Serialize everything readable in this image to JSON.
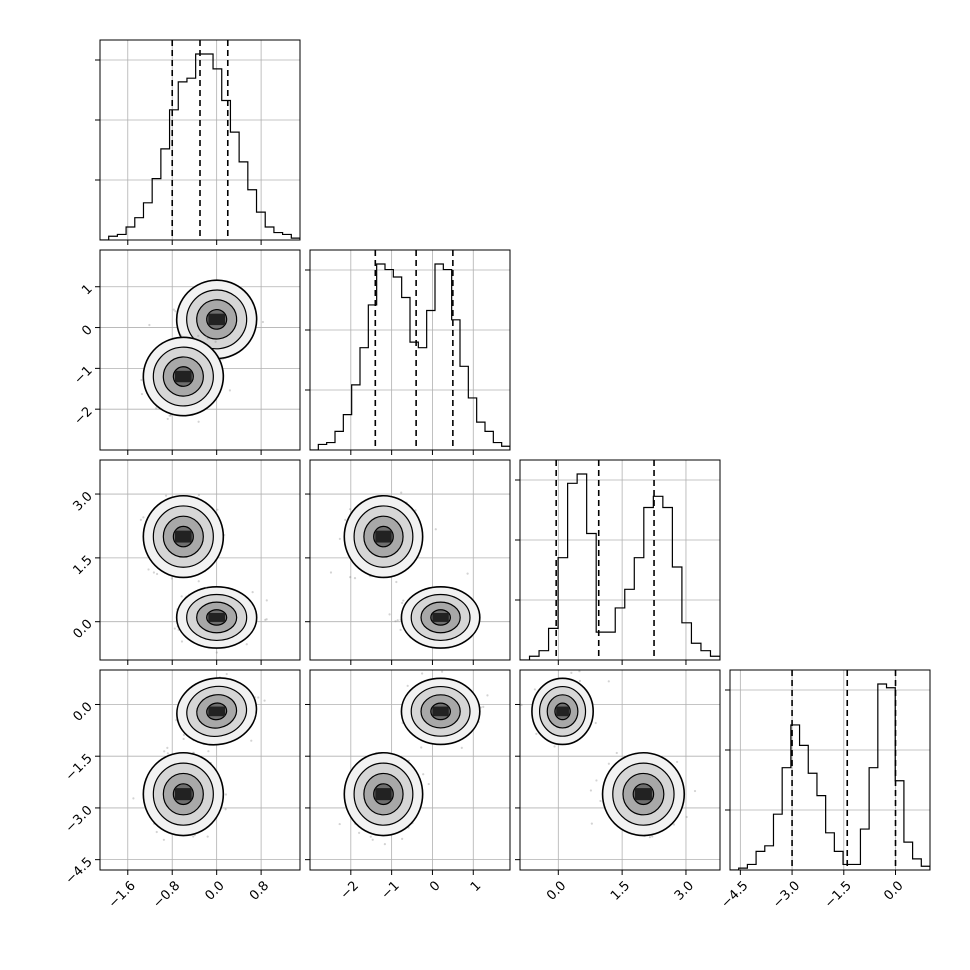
{
  "chart_data": {
    "type": "corner",
    "title": "",
    "n_params": 4,
    "axis_labels": [
      "",
      "",
      "",
      ""
    ],
    "grid": true,
    "colors": {
      "line": "#000000",
      "grid": "#b0b0b0",
      "points": "#808080",
      "background": "#ffffff"
    },
    "params": [
      {
        "range": [
          -2.1,
          1.5
        ],
        "ticks": [
          -1.6,
          -0.8,
          0.0,
          0.8
        ],
        "tick_labels": [
          "−1.6",
          "−0.8",
          "0.0",
          "0.8"
        ],
        "quantiles": [
          -0.8,
          -0.3,
          0.2
        ]
      },
      {
        "range": [
          -3.0,
          1.9
        ],
        "ticks": [
          -2,
          -1,
          0,
          1
        ],
        "tick_labels": [
          "−2",
          "−1",
          "0",
          "1"
        ],
        "quantiles": [
          -1.4,
          -0.4,
          0.5
        ]
      },
      {
        "range": [
          -0.9,
          3.8
        ],
        "ticks": [
          0.0,
          1.5,
          3.0
        ],
        "tick_labels": [
          "0.0",
          "1.5",
          "3.0"
        ],
        "quantiles": [
          -0.05,
          0.95,
          2.25
        ]
      },
      {
        "range": [
          -4.8,
          1.0
        ],
        "ticks": [
          -4.5,
          -3.0,
          -1.5,
          0.0
        ],
        "tick_labels": [
          "−4.5",
          "−3.0",
          "−1.5",
          "0.0"
        ],
        "quantiles": [
          -3.0,
          -1.4,
          0.0
        ]
      }
    ],
    "diagonal_ytick_fractions": [
      0.3,
      0.6,
      0.9
    ],
    "histograms": [
      [
        0,
        2,
        3,
        7,
        12,
        20,
        33,
        49,
        70,
        85,
        87,
        100,
        100,
        92,
        75,
        58,
        42,
        27,
        15,
        7,
        4,
        3,
        1
      ],
      [
        0,
        3,
        4,
        10,
        19,
        35,
        55,
        78,
        100,
        97,
        93,
        82,
        58,
        55,
        75,
        100,
        97,
        70,
        45,
        28,
        15,
        10,
        4,
        2
      ],
      [
        0,
        2,
        5,
        17,
        55,
        95,
        100,
        68,
        15,
        15,
        28,
        38,
        55,
        82,
        88,
        82,
        50,
        20,
        9,
        5,
        2
      ],
      [
        0,
        1,
        3,
        10,
        13,
        30,
        55,
        78,
        67,
        52,
        40,
        20,
        10,
        3,
        3,
        22,
        55,
        100,
        98,
        48,
        15,
        6,
        2
      ]
    ],
    "components": [
      {
        "weight": 0.5,
        "mean": [
          0.0,
          0.2,
          0.1,
          -0.2
        ],
        "sd": [
          0.3,
          0.4,
          0.3,
          0.4
        ],
        "rho": {
          "0-1": 0.2,
          "0-3": 0.3,
          "1-2": 0.0,
          "2-3": 0.0
        }
      },
      {
        "weight": 0.5,
        "mean": [
          -0.6,
          -1.2,
          2.0,
          -2.6
        ],
        "sd": [
          0.3,
          0.4,
          0.4,
          0.5
        ],
        "rho": {
          "0-1": 0.1,
          "0-3": 0.0,
          "1-2": 0.0,
          "2-3": 0.0
        }
      }
    ]
  }
}
